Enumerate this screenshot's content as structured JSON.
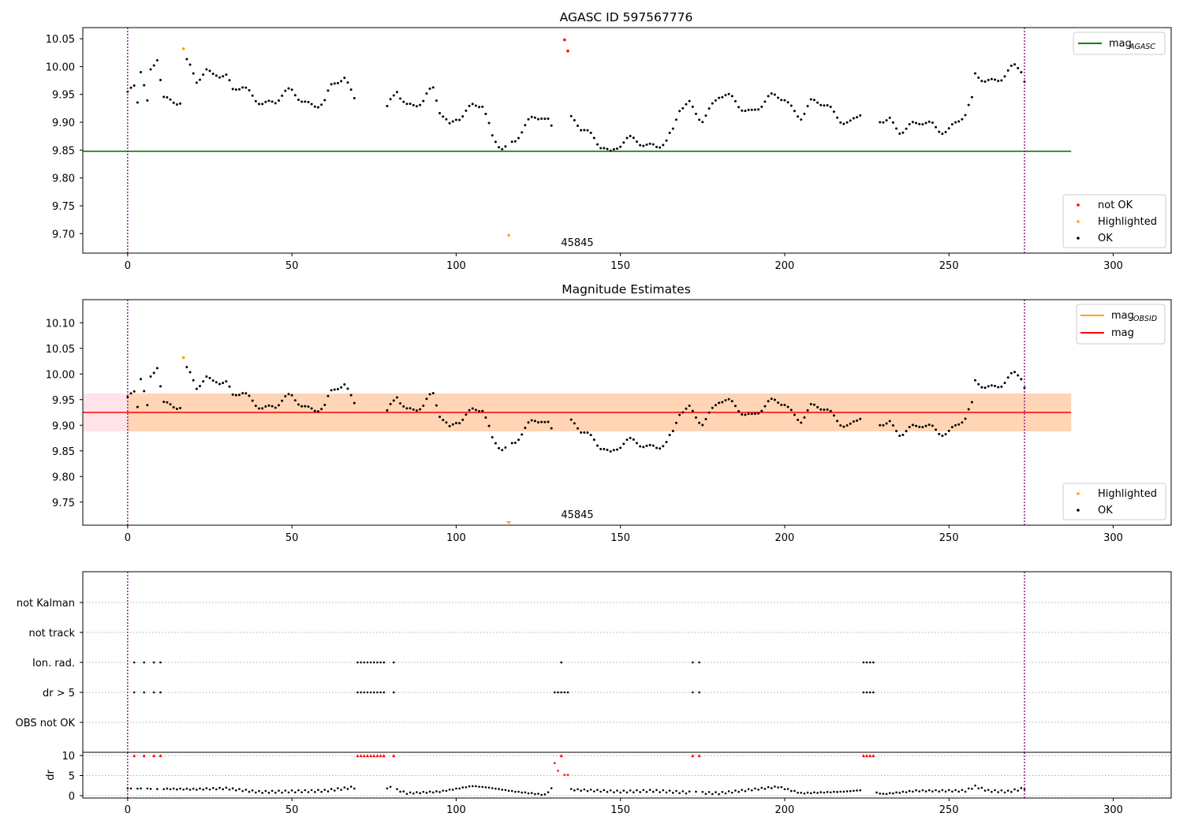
{
  "chart_data": [
    {
      "type": "scatter",
      "title": "AGASC ID 597567776",
      "annotation": "45845",
      "xlim": [
        -13.65,
        317.65
      ],
      "ylim": [
        9.665,
        10.07
      ],
      "xticks": [
        0,
        50,
        100,
        150,
        200,
        250,
        300
      ],
      "yticks": [
        9.7,
        9.75,
        9.8,
        9.85,
        9.9,
        9.95,
        10.0,
        10.05
      ],
      "grid": false,
      "legend_position": "upper right and lower right",
      "legend_lines": [
        {
          "label": "mag",
          "sub": "AGASC",
          "color": "#008000"
        }
      ],
      "legend_markers": [
        {
          "label": "not OK",
          "color": "#ff0000"
        },
        {
          "label": "Highlighted",
          "color": "#ffa500"
        },
        {
          "label": "OK",
          "color": "#000000"
        }
      ],
      "hlines": [
        {
          "name": "mag_AGASC",
          "y": 9.848,
          "x": [
            -13.65,
            287.2
          ],
          "color": "#008000"
        }
      ],
      "vlines": [
        0,
        273
      ],
      "series": [
        {
          "name": "OK",
          "color": "#000000"
        },
        {
          "name": "Highlighted",
          "color": "#ffa500",
          "points": [
            [
              17,
              10.032
            ],
            [
              116,
              9.697
            ]
          ]
        },
        {
          "name": "not OK",
          "color": "#ff0000",
          "points": [
            [
              133,
              10.048
            ],
            [
              134,
              10.028
            ]
          ]
        }
      ]
    },
    {
      "type": "scatter",
      "title": "Magnitude Estimates",
      "annotation": "45845",
      "xlim": [
        -13.65,
        317.65
      ],
      "ylim": [
        9.705,
        10.145
      ],
      "xticks": [
        0,
        50,
        100,
        150,
        200,
        250,
        300
      ],
      "yticks": [
        9.75,
        9.8,
        9.85,
        9.9,
        9.95,
        10.0,
        10.05,
        10.1
      ],
      "grid": false,
      "legend_position": "upper right and lower right",
      "legend_lines": [
        {
          "label": "mag",
          "sub": "OBSID",
          "color": "#ffa500"
        },
        {
          "label": "mag",
          "sub": "",
          "color": "#ff0000"
        }
      ],
      "legend_markers": [
        {
          "label": "Highlighted",
          "color": "#ffa500"
        },
        {
          "label": "OK",
          "color": "#000000"
        }
      ],
      "hlines": [
        {
          "name": "mag",
          "y": 9.925,
          "x": [
            -13.65,
            287.2
          ],
          "color": "#ff0000"
        }
      ],
      "bands": [
        {
          "name": "mag range",
          "y": [
            9.888,
            9.962
          ],
          "x": [
            -13.65,
            287.2
          ],
          "color": "#ffc0cb"
        },
        {
          "name": "mag_OBSID range",
          "y": [
            9.888,
            9.962
          ],
          "x": [
            0,
            287.2
          ],
          "color": "#ffa500"
        }
      ],
      "vlines": [
        0,
        273
      ],
      "series": [
        {
          "name": "OK",
          "color": "#000000"
        },
        {
          "name": "Highlighted",
          "color": "#ffa500",
          "points": [
            [
              17,
              10.032
            ]
          ]
        },
        {
          "name": "Highlighted (off-scale)",
          "color": "#ffa500",
          "points": [
            [
              116,
              9.71
            ]
          ]
        }
      ]
    },
    {
      "type": "scatter",
      "title": "",
      "xlim": [
        -13.65,
        317.65
      ],
      "categories": [
        "not Kalman",
        "not track",
        "Ion. rad.",
        "dr > 5",
        "OBS not OK"
      ],
      "flags": {
        "Ion. rad.": [
          2,
          5,
          8,
          10,
          70,
          71,
          72,
          73,
          74,
          75,
          76,
          77,
          78,
          81,
          132,
          172,
          174,
          224,
          225,
          226,
          227
        ],
        "dr > 5": [
          2,
          5,
          8,
          10,
          70,
          71,
          72,
          73,
          74,
          75,
          76,
          77,
          78,
          81,
          130,
          131,
          132,
          133,
          134,
          172,
          174,
          224,
          225,
          226,
          227
        ]
      },
      "vlines": [
        0,
        273
      ]
    },
    {
      "type": "scatter",
      "title": "",
      "ylabel": "dr",
      "xlim": [
        -13.65,
        317.65
      ],
      "ylim": [
        -0.6,
        10.8
      ],
      "xticks": [
        0,
        50,
        100,
        150,
        200,
        250,
        300
      ],
      "yticks": [
        0,
        5,
        10
      ],
      "grid": true,
      "vlines": [
        0,
        273
      ],
      "series": [
        {
          "name": "dr",
          "color": "#000000"
        },
        {
          "name": "dr > 5 (clipped)",
          "color": "#ff0000",
          "marker": "triangle",
          "points": [
            [
              2,
              10
            ],
            [
              5,
              10
            ],
            [
              8,
              10
            ],
            [
              10,
              10
            ],
            [
              70,
              10
            ],
            [
              71,
              10
            ],
            [
              72,
              10
            ],
            [
              73,
              10
            ],
            [
              74,
              10
            ],
            [
              75,
              10
            ],
            [
              76,
              10
            ],
            [
              77,
              10
            ],
            [
              78,
              10
            ],
            [
              81,
              10
            ],
            [
              132,
              10
            ],
            [
              172,
              10
            ],
            [
              174,
              10
            ],
            [
              224,
              10
            ],
            [
              225,
              10
            ],
            [
              226,
              10
            ],
            [
              227,
              10
            ]
          ]
        },
        {
          "name": "dr > 5",
          "color": "#ff0000",
          "points": [
            [
              130,
              8.1
            ],
            [
              131,
              6.2
            ],
            [
              133,
              5.2
            ],
            [
              134,
              5.2
            ]
          ]
        }
      ]
    }
  ]
}
